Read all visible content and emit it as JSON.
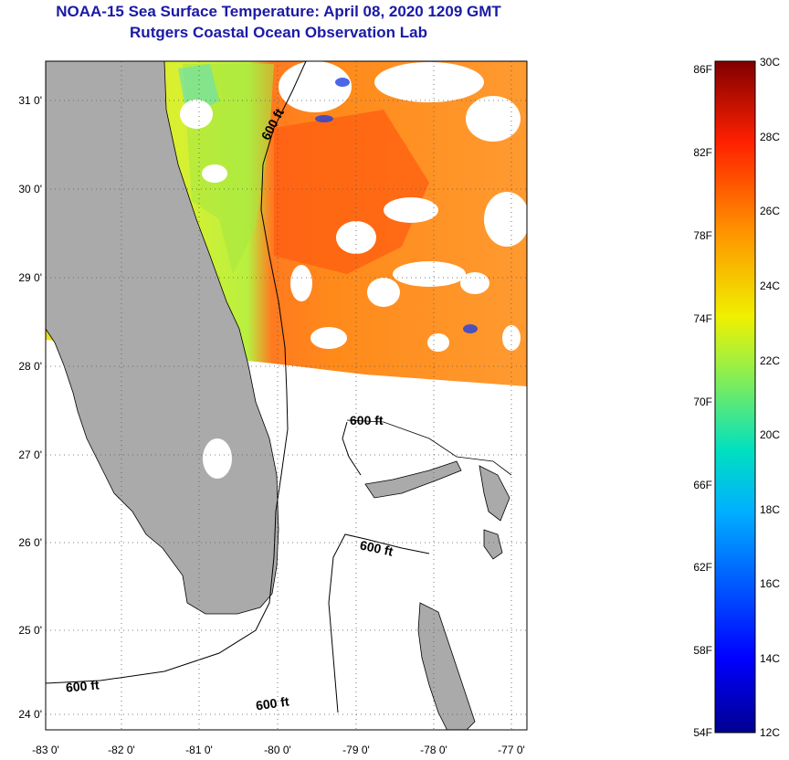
{
  "header": {
    "title": "NOAA-15 Sea Surface Temperature:  April 08, 2020 1209 GMT",
    "subtitle": "Rutgers Coastal Ocean Observation Lab"
  },
  "map": {
    "lat_labels": [
      "31 0'",
      "30 0'",
      "29 0'",
      "28 0'",
      "27 0'",
      "26 0'",
      "25 0'",
      "24 0'"
    ],
    "lon_labels": [
      "-83 0'",
      "-82 0'",
      "-81 0'",
      "-80 0'",
      "-79 0'",
      "-78 0'",
      "-77 0'"
    ],
    "lat_range": [
      23.85,
      31.45
    ],
    "lon_range": [
      -83.0,
      -76.8
    ],
    "contour_labels": [
      "600 ft",
      "600 ft",
      "600 ft",
      "600 ft",
      "600 ft"
    ],
    "colors": {
      "land": "#aaaaaa",
      "grid": "#555555",
      "title": "#1a1aa6"
    }
  },
  "colorbar": {
    "fahrenheit_labels": [
      "86F",
      "82F",
      "78F",
      "74F",
      "70F",
      "66F",
      "62F",
      "58F",
      "54F"
    ],
    "celsius_labels": [
      "30C",
      "28C",
      "26C",
      "24C",
      "22C",
      "20C",
      "18C",
      "16C",
      "14C",
      "12C"
    ],
    "range_c": [
      12,
      30
    ]
  }
}
